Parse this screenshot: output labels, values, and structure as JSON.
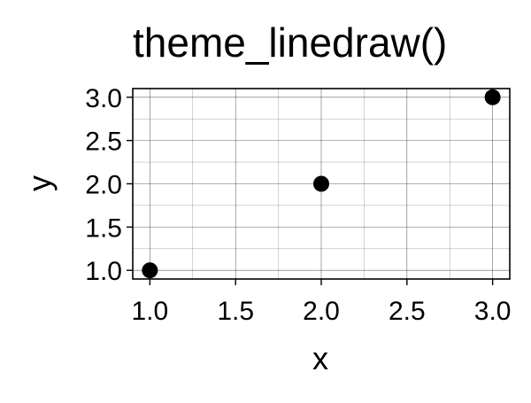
{
  "chart_data": {
    "type": "scatter",
    "title": "theme_linedraw()",
    "xlabel": "x",
    "ylabel": "y",
    "xlim": [
      0.9,
      3.1
    ],
    "ylim": [
      0.9,
      3.1
    ],
    "x_ticks": [
      1.0,
      1.5,
      2.0,
      2.5,
      3.0
    ],
    "y_ticks": [
      1.0,
      1.5,
      2.0,
      2.5,
      3.0
    ],
    "x_tick_labels": [
      "1.0",
      "1.5",
      "2.0",
      "2.5",
      "3.0"
    ],
    "y_tick_labels": [
      "1.0",
      "1.5",
      "2.0",
      "2.5",
      "3.0"
    ],
    "grid": true,
    "series": [
      {
        "x": [
          1,
          2,
          3
        ],
        "y": [
          1,
          2,
          3
        ]
      }
    ]
  },
  "colors": {
    "background": "#ffffff",
    "panel_border": "#000000",
    "grid_major": "#000000",
    "grid_minor": "#000000",
    "point": "#000000",
    "text": "#000000"
  }
}
